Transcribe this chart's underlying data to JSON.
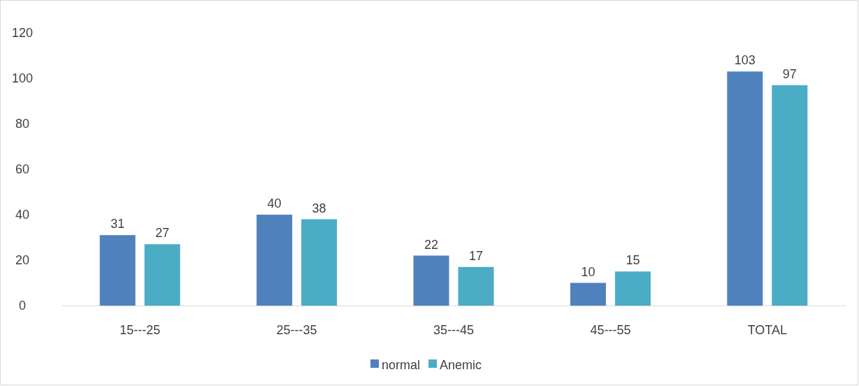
{
  "chart_data": {
    "type": "bar",
    "categories": [
      "15---25",
      "25---35",
      "35---45",
      "45---55",
      "TOTAL"
    ],
    "series": [
      {
        "name": "normal",
        "color": "#4f81bd",
        "values": [
          31,
          40,
          22,
          10,
          103
        ]
      },
      {
        "name": "Anemic",
        "color": "#4bacc6",
        "values": [
          27,
          38,
          17,
          15,
          97
        ]
      }
    ],
    "ylim": [
      0,
      120
    ],
    "yticks": [
      0,
      20,
      40,
      60,
      80,
      100,
      120
    ],
    "grid": false,
    "data_labels": true,
    "legend": "bottom"
  }
}
